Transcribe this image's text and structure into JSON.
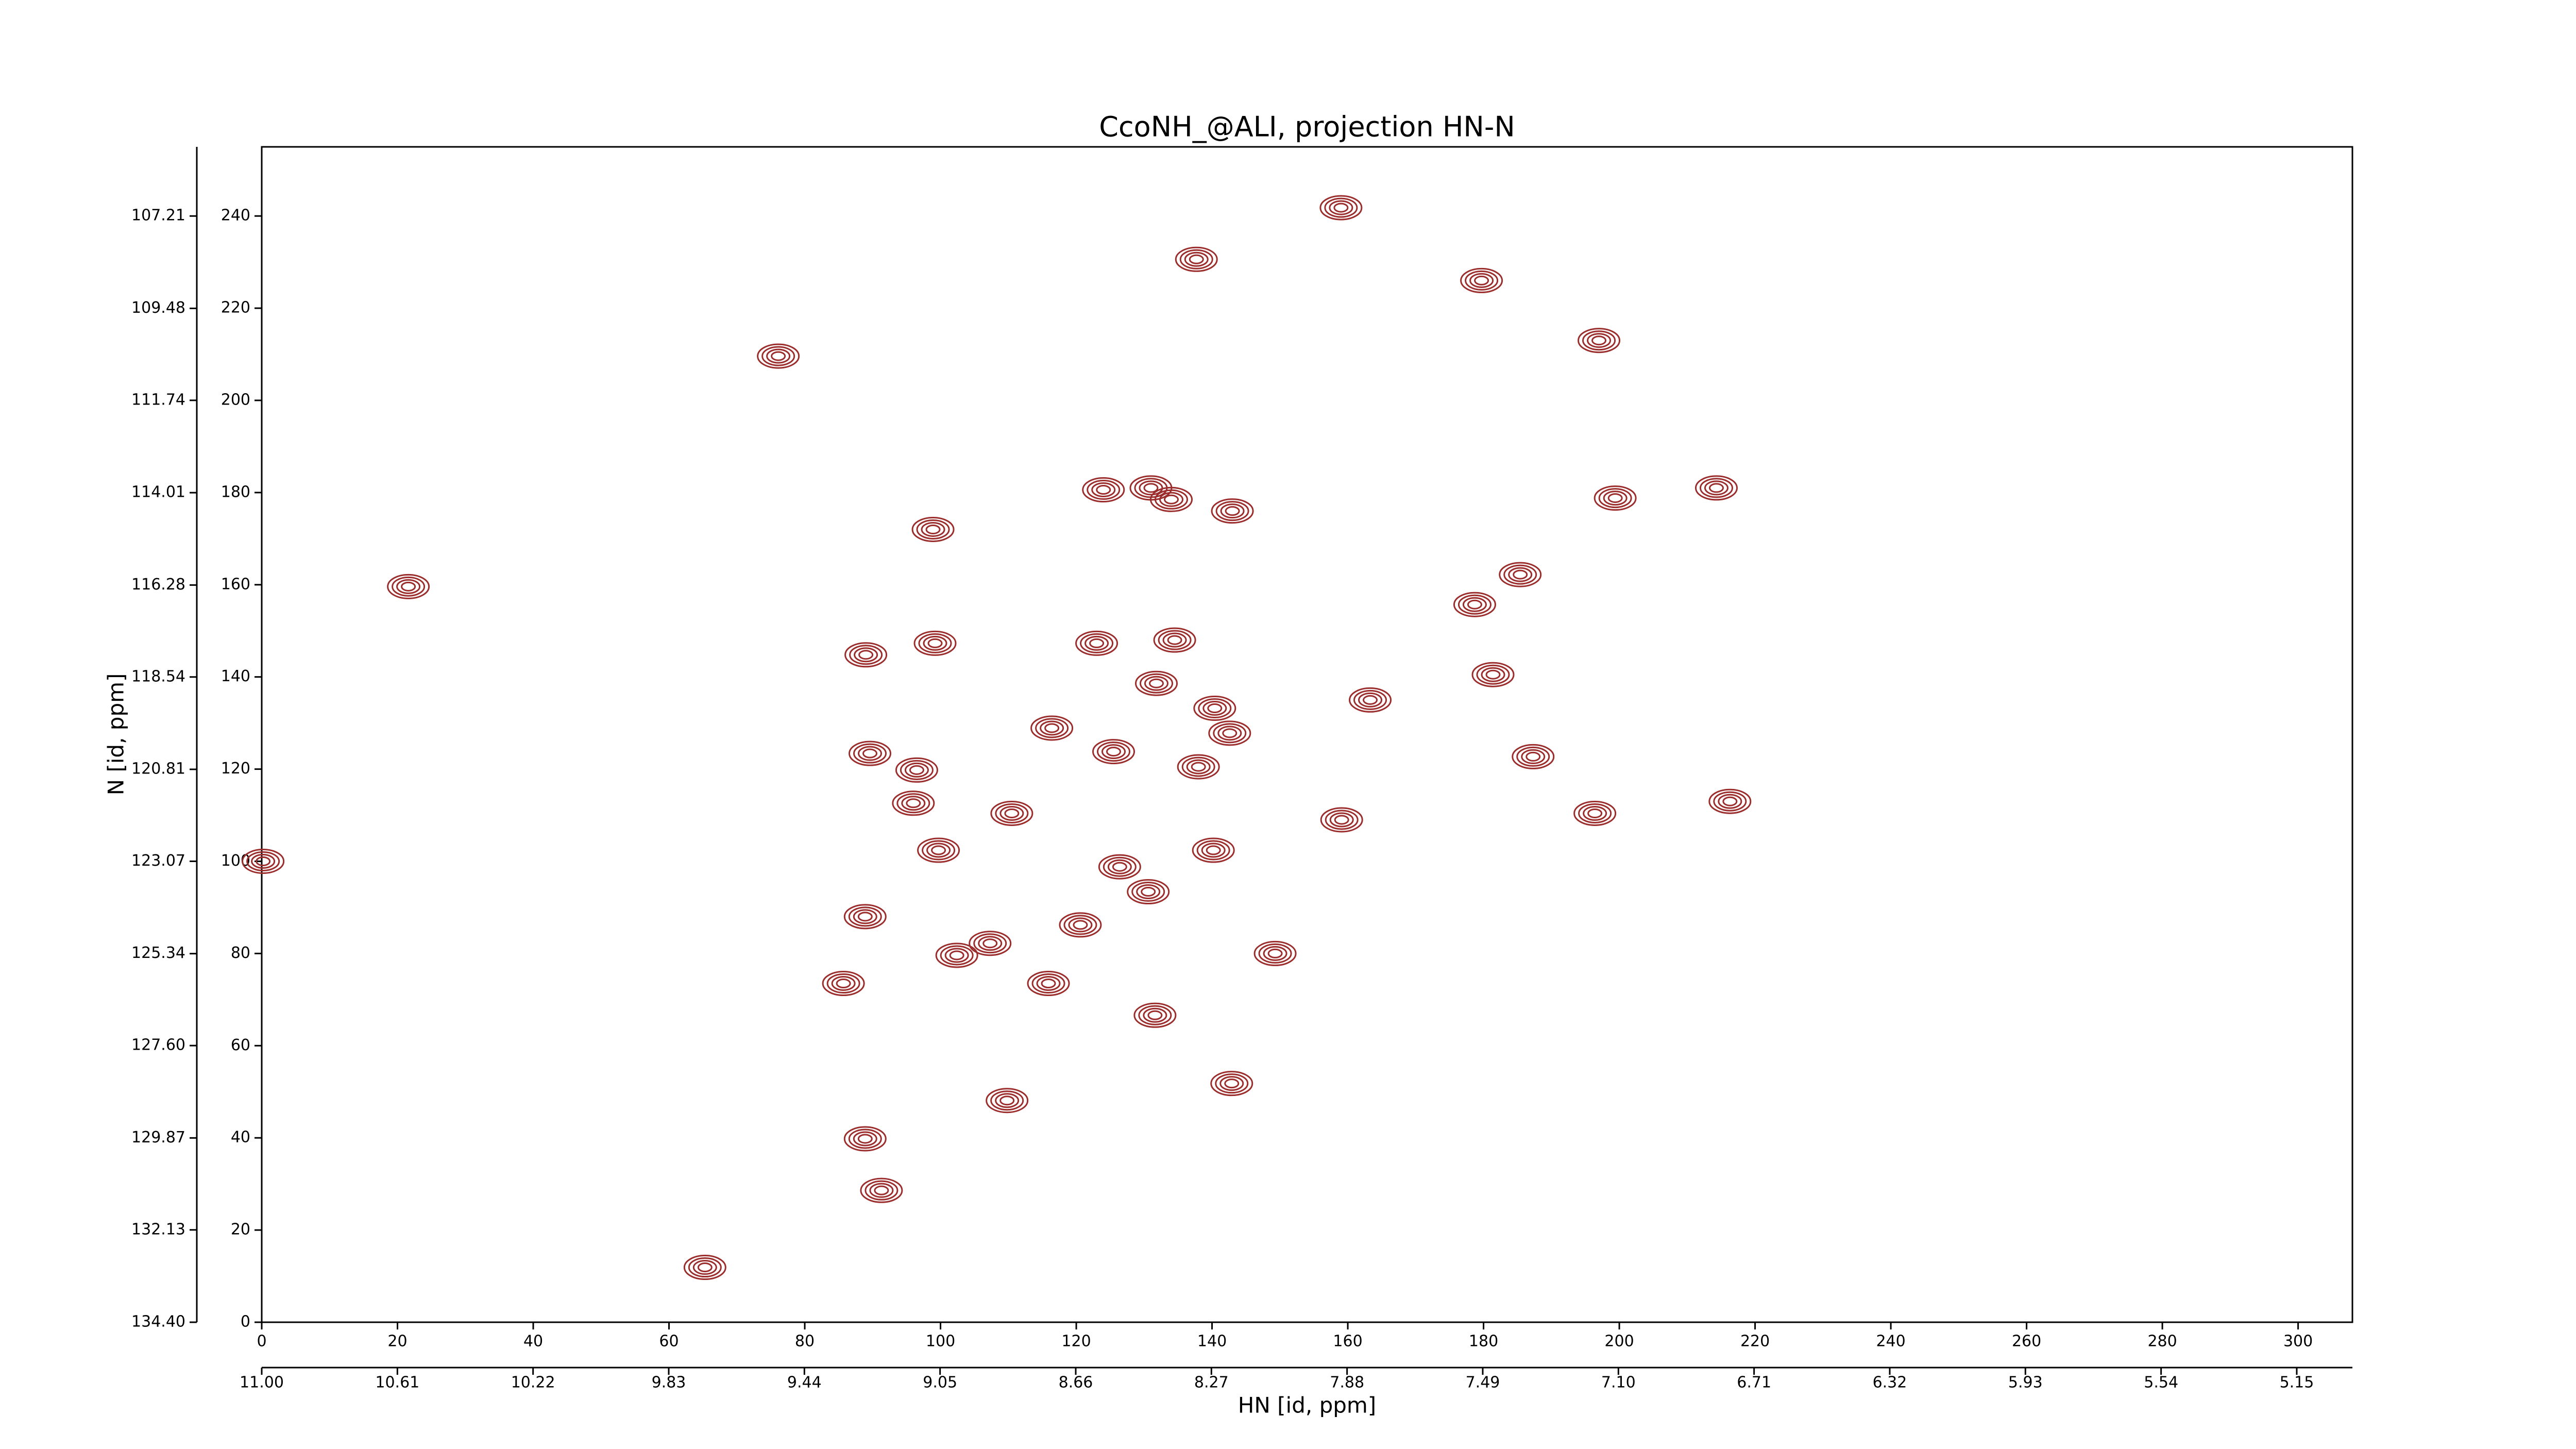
{
  "chart_data": {
    "type": "contour",
    "title": "CcoNH_@ALI, projection HN-N",
    "xlabel": "HN [id, ppm]",
    "ylabel": "N [id, ppm]",
    "color": "#9b2d2d",
    "xlim": [
      0,
      308
    ],
    "ylim": [
      0,
      255
    ],
    "xticks": [
      0,
      20,
      40,
      60,
      80,
      100,
      120,
      140,
      160,
      180,
      200,
      220,
      240,
      260,
      280,
      300
    ],
    "yticks": [
      0,
      20,
      40,
      60,
      80,
      100,
      120,
      140,
      160,
      180,
      200,
      220,
      240
    ],
    "x2lim": [
      11.0,
      4.99
    ],
    "x2ticks": [
      {
        "value": 11,
        "label": "11.00"
      },
      10.61,
      10.22,
      9.83,
      9.44,
      9.05,
      8.66,
      8.27,
      7.88,
      7.49,
      {
        "value": 7.1,
        "label": "7.10"
      },
      6.71,
      6.32,
      5.93,
      5.54,
      5.15
    ],
    "y2lim": [
      134.4,
      105.51
    ],
    "y2ticks": [
      {
        "value": 134.4,
        "label": "134.40"
      },
      132.13,
      129.87,
      {
        "value": 127.6,
        "label": "127.60"
      },
      125.34,
      123.07,
      120.81,
      118.54,
      116.28,
      114.01,
      111.74,
      109.48,
      107.21
    ],
    "x": [
      137.7,
      76.1,
      98.9,
      124,
      131,
      134,
      143,
      178.7,
      185.4,
      199.4,
      214.3,
      179.7,
      99.2,
      89,
      123,
      134.5,
      131.8,
      140.4,
      142.6,
      138,
      116.4,
      125.5,
      89.6,
      96.5,
      96,
      110.5,
      140.2,
      126.4,
      130.6,
      99.7,
      88.9,
      107.3,
      102.4,
      120.6,
      149.3,
      85.7,
      115.9,
      131.6,
      109.8,
      142.9,
      88.9,
      91.3,
      65.3,
      163.3,
      181.4,
      159.1,
      196.4,
      216.3,
      187.3,
      159,
      197,
      21.6,
      0.2
    ],
    "y": [
      230.6,
      209.6,
      172,
      180.6,
      181,
      178.5,
      176,
      155.7,
      162.2,
      178.8,
      181,
      226,
      147.3,
      144.8,
      147.3,
      148,
      138.6,
      133.2,
      127.8,
      120.5,
      128.9,
      123.8,
      123.4,
      119.8,
      112.6,
      110.4,
      102.4,
      98.8,
      93.4,
      102.4,
      88,
      82.2,
      79.6,
      86.2,
      80,
      73.5,
      73.5,
      66.6,
      48.1,
      51.8,
      39.8,
      28.6,
      11.9,
      135,
      140.5,
      109,
      110.4,
      113,
      122.7,
      241.8,
      213,
      159.6,
      100
    ]
  }
}
